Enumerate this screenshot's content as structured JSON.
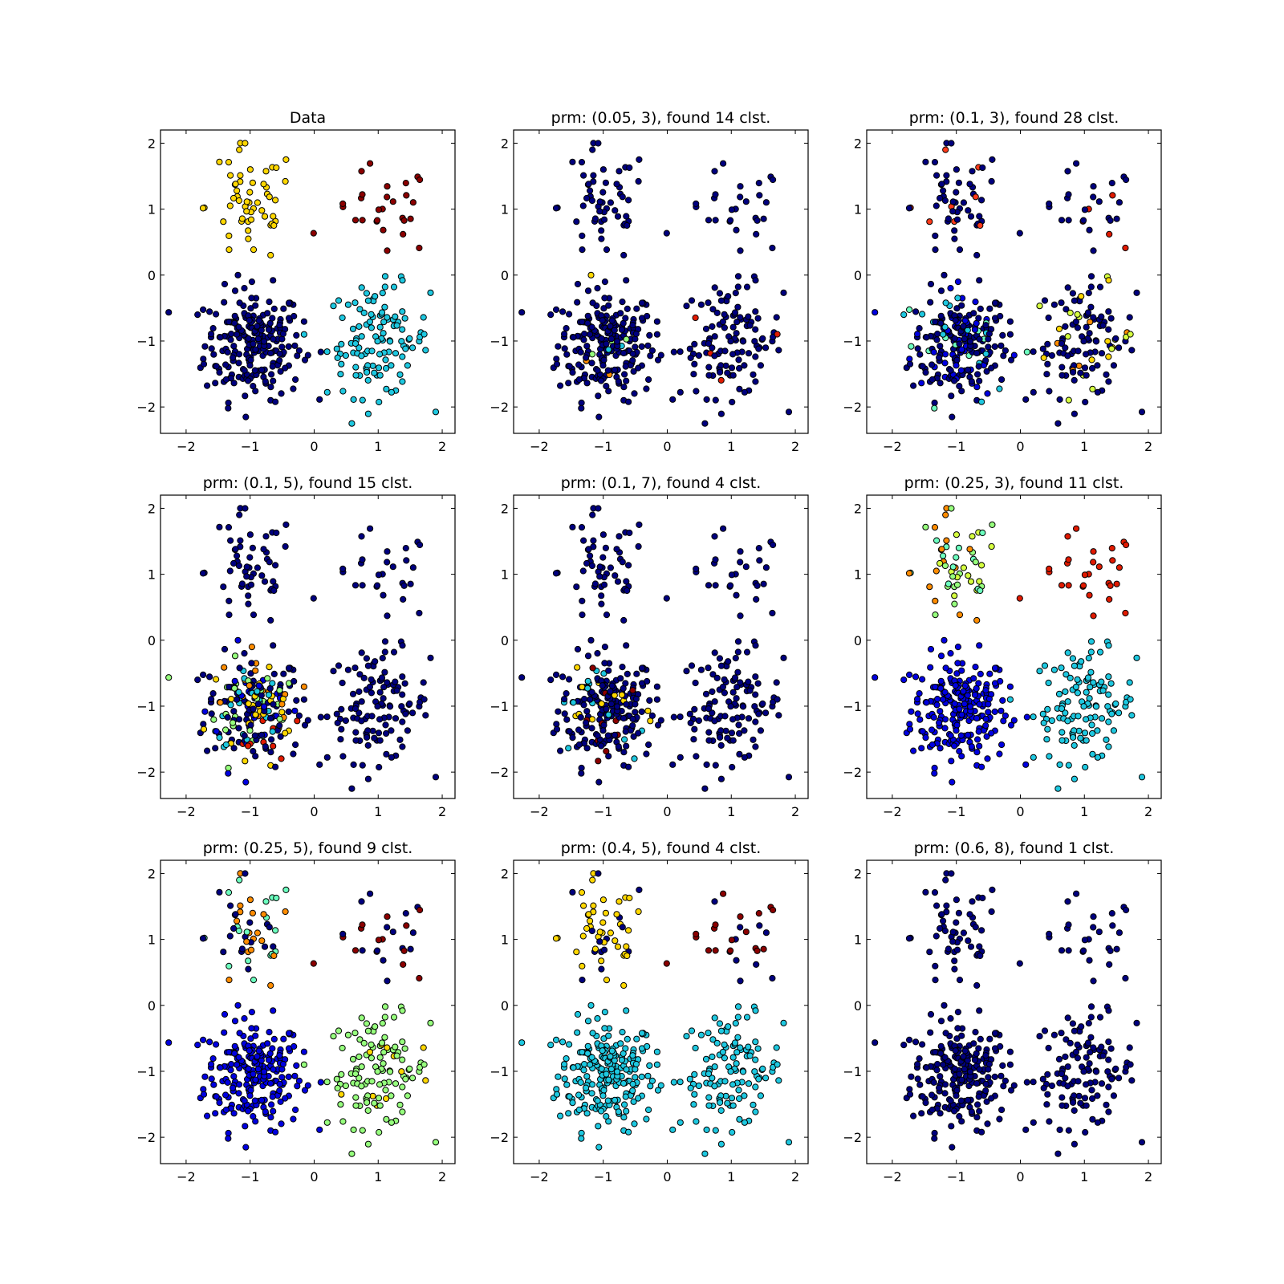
{
  "figure": {
    "point_colors": {
      "navy": "#00007f",
      "blue": "#0000e0",
      "cyan": "#1ec8e0",
      "light_green": "#96ff7d",
      "mint": "#6cffbf",
      "yellow": "#ffd700",
      "lime_yellow": "#d5ff3f",
      "orange": "#ff8c00",
      "red_orange": "#ff3a1a",
      "red": "#e01a00",
      "dark_red": "#8b0000"
    }
  },
  "chart_data": [
    {
      "type": "scatter",
      "title": "Data",
      "xlim": [
        -2.4,
        2.2
      ],
      "ylim": [
        -2.4,
        2.2
      ],
      "x_ticks": [
        -2,
        -1,
        0,
        1,
        2
      ],
      "y_ticks": [
        -2,
        -1,
        0,
        1,
        2
      ],
      "grid": false,
      "cluster_colors": [
        "navy",
        "cyan",
        "yellow",
        "dark_red"
      ]
    },
    {
      "type": "scatter",
      "title": "prm: (0.05, 3), found 14 clst.",
      "xlim": [
        -2.4,
        2.2
      ],
      "ylim": [
        -2.4,
        2.2
      ],
      "x_ticks": [
        -2,
        -1,
        0,
        1,
        2
      ],
      "y_ticks": [
        -2,
        -1,
        0,
        1,
        2
      ],
      "grid": false,
      "cluster_colors": [
        "navy",
        "yellow",
        "orange",
        "red",
        "cyan",
        "light_green"
      ]
    },
    {
      "type": "scatter",
      "title": "prm: (0.1, 3), found 28 clst.",
      "xlim": [
        -2.4,
        2.2
      ],
      "ylim": [
        -2.4,
        2.2
      ],
      "x_ticks": [
        -2,
        -1,
        0,
        1,
        2
      ],
      "y_ticks": [
        -2,
        -1,
        0,
        1,
        2
      ],
      "grid": false,
      "cluster_colors": [
        "navy",
        "blue",
        "cyan",
        "mint",
        "lime_yellow",
        "yellow",
        "orange",
        "red_orange",
        "red"
      ]
    },
    {
      "type": "scatter",
      "title": "prm: (0.1, 5), found 15 clst.",
      "xlim": [
        -2.4,
        2.2
      ],
      "ylim": [
        -2.4,
        2.2
      ],
      "x_ticks": [
        -2,
        -1,
        0,
        1,
        2
      ],
      "y_ticks": [
        -2,
        -1,
        0,
        1,
        2
      ],
      "grid": false,
      "cluster_colors": [
        "navy",
        "blue",
        "cyan",
        "light_green",
        "lime_yellow",
        "yellow",
        "orange",
        "red"
      ]
    },
    {
      "type": "scatter",
      "title": "prm: (0.1, 7), found 4 clst.",
      "xlim": [
        -2.4,
        2.2
      ],
      "ylim": [
        -2.4,
        2.2
      ],
      "x_ticks": [
        -2,
        -1,
        0,
        1,
        2
      ],
      "y_ticks": [
        -2,
        -1,
        0,
        1,
        2
      ],
      "grid": false,
      "cluster_colors": [
        "navy",
        "yellow",
        "cyan",
        "dark_red"
      ]
    },
    {
      "type": "scatter",
      "title": "prm: (0.25, 3), found 11 clst.",
      "xlim": [
        -2.4,
        2.2
      ],
      "ylim": [
        -2.4,
        2.2
      ],
      "x_ticks": [
        -2,
        -1,
        0,
        1,
        2
      ],
      "y_ticks": [
        -2,
        -1,
        0,
        1,
        2
      ],
      "grid": false,
      "cluster_colors": [
        "blue",
        "cyan",
        "light_green",
        "mint",
        "lime_yellow",
        "orange",
        "red"
      ]
    },
    {
      "type": "scatter",
      "title": "prm: (0.25, 5), found 9 clst.",
      "xlim": [
        -2.4,
        2.2
      ],
      "ylim": [
        -2.4,
        2.2
      ],
      "x_ticks": [
        -2,
        -1,
        0,
        1,
        2
      ],
      "y_ticks": [
        -2,
        -1,
        0,
        1,
        2
      ],
      "grid": false,
      "cluster_colors": [
        "navy",
        "blue",
        "light_green",
        "mint",
        "yellow",
        "orange",
        "red_orange",
        "dark_red"
      ]
    },
    {
      "type": "scatter",
      "title": "prm: (0.4, 5), found 4 clst.",
      "xlim": [
        -2.4,
        2.2
      ],
      "ylim": [
        -2.4,
        2.2
      ],
      "x_ticks": [
        -2,
        -1,
        0,
        1,
        2
      ],
      "y_ticks": [
        -2,
        -1,
        0,
        1,
        2
      ],
      "grid": false,
      "cluster_colors": [
        "navy",
        "cyan",
        "yellow",
        "dark_red"
      ]
    },
    {
      "type": "scatter",
      "title": "prm: (0.6, 8), found 1 clst.",
      "xlim": [
        -2.4,
        2.2
      ],
      "ylim": [
        -2.4,
        2.2
      ],
      "x_ticks": [
        -2,
        -1,
        0,
        1,
        2
      ],
      "y_ticks": [
        -2,
        -1,
        0,
        1,
        2
      ],
      "grid": false,
      "cluster_colors": [
        "navy"
      ]
    }
  ]
}
